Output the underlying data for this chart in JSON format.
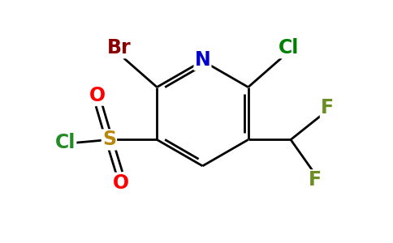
{
  "background_color": "#ffffff",
  "bond_color": "#000000",
  "atom_colors": {
    "Br": "#8b0000",
    "N": "#0000cd",
    "Cl_top": "#008000",
    "Cl_bottom": "#228b22",
    "S": "#b8860b",
    "O": "#ff0000",
    "F_top": "#6b8e23",
    "F_bottom": "#6b8e23"
  },
  "figsize": [
    4.84,
    3.0
  ],
  "dpi": 100
}
